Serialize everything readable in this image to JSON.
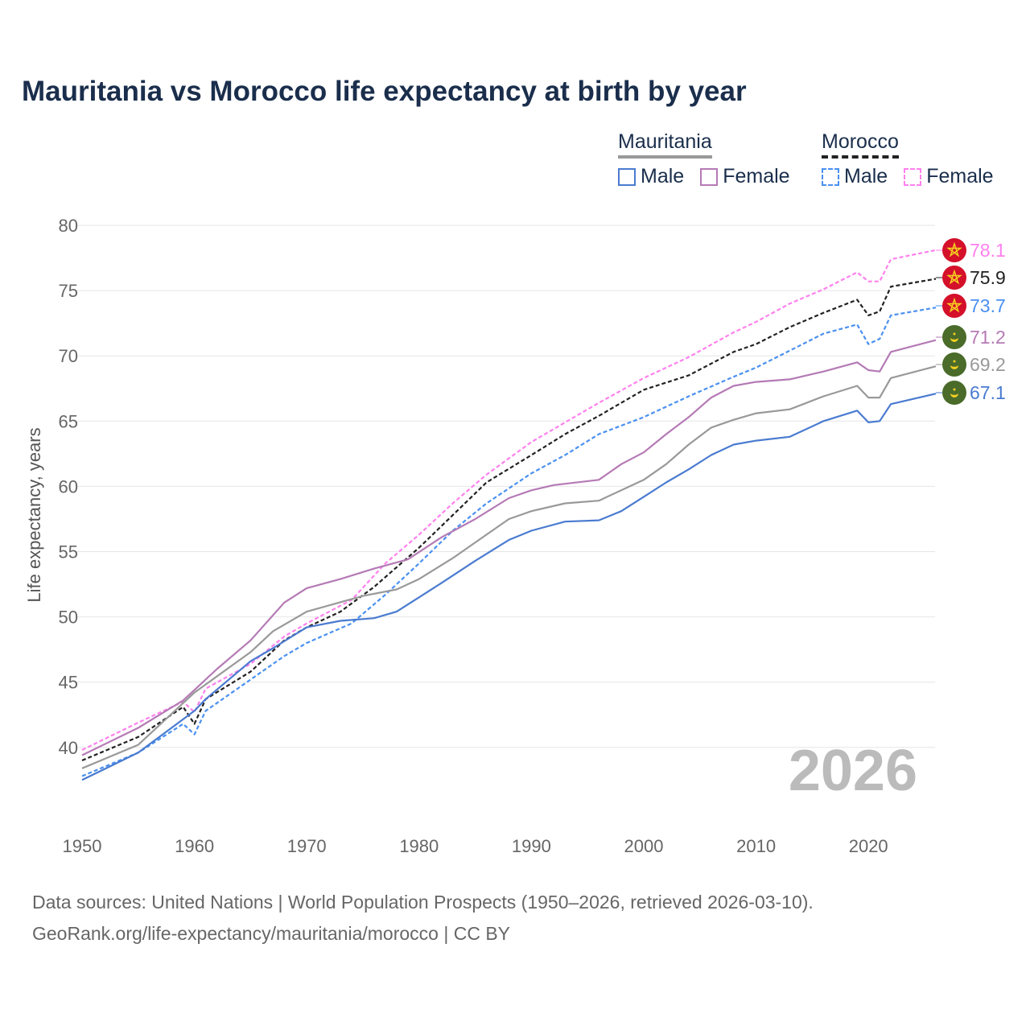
{
  "chart_data": {
    "type": "line",
    "title": "Mauritania vs Morocco life expectancy at birth by year",
    "xlabel": "",
    "ylabel": "Life expectancy, years",
    "xlim": [
      1950,
      2026
    ],
    "ylim": [
      35,
      80
    ],
    "xticks": [
      "1950",
      "1960",
      "1970",
      "1980",
      "1990",
      "2000",
      "2010",
      "2020"
    ],
    "yticks": [
      "40",
      "45",
      "50",
      "55",
      "60",
      "65",
      "70",
      "75",
      "80"
    ],
    "grid": true,
    "watermark_year": "2026",
    "legend": {
      "groups": [
        {
          "country": "Mauritania",
          "male": "Male",
          "female": "Female"
        },
        {
          "country": "Morocco",
          "male": "Male",
          "female": "Female"
        }
      ],
      "placement": "top-right"
    },
    "series": [
      {
        "name": "Morocco Female",
        "color": "#ff80ee",
        "dash": true,
        "flag": "morocco",
        "end_label": "78.1",
        "x": [
          1950,
          1955,
          1959,
          1960,
          1961,
          1965,
          1968,
          1970,
          1974,
          1977,
          1980,
          1983,
          1986,
          1990,
          1993,
          1996,
          2000,
          2004,
          2008,
          2010,
          2013,
          2016,
          2019,
          2020,
          2021,
          2022,
          2026
        ],
        "y": [
          39.8,
          41.9,
          43.5,
          42.7,
          44.5,
          46.4,
          48.5,
          49.5,
          51.3,
          54.1,
          56.3,
          58.7,
          60.9,
          63.4,
          64.9,
          66.4,
          68.3,
          69.9,
          71.8,
          72.6,
          74.0,
          75.1,
          76.4,
          75.7,
          75.7,
          77.4,
          78.1
        ]
      },
      {
        "name": "Morocco",
        "color": "#222222",
        "dash": true,
        "flag": "morocco",
        "end_label": "75.9",
        "x": [
          1950,
          1955,
          1959,
          1960,
          1961,
          1965,
          1968,
          1970,
          1973,
          1976,
          1980,
          1983,
          1986,
          1990,
          1993,
          1996,
          2000,
          2004,
          2008,
          2010,
          2013,
          2016,
          2019,
          2020,
          2021,
          2022,
          2026
        ],
        "y": [
          39.0,
          40.8,
          43.1,
          41.8,
          43.7,
          45.8,
          48.2,
          49.2,
          50.4,
          52.3,
          55.3,
          57.8,
          60.3,
          62.4,
          64.0,
          65.4,
          67.4,
          68.5,
          70.3,
          70.9,
          72.2,
          73.3,
          74.3,
          73.1,
          73.4,
          75.3,
          75.9
        ]
      },
      {
        "name": "Morocco Male",
        "color": "#4a90f0",
        "dash": true,
        "flag": "morocco",
        "end_label": "73.7",
        "x": [
          1950,
          1955,
          1959,
          1960,
          1961,
          1965,
          1968,
          1970,
          1974,
          1977,
          1980,
          1983,
          1986,
          1990,
          1993,
          1996,
          2000,
          2004,
          2008,
          2010,
          2013,
          2016,
          2019,
          2020,
          2021,
          2022,
          2026
        ],
        "y": [
          37.8,
          39.6,
          41.8,
          41.0,
          42.8,
          45.2,
          47.0,
          48.0,
          49.5,
          51.7,
          54.1,
          56.6,
          58.7,
          61.0,
          62.4,
          64.0,
          65.3,
          66.9,
          68.4,
          69.1,
          70.4,
          71.7,
          72.4,
          70.9,
          71.3,
          73.1,
          73.7
        ]
      },
      {
        "name": "Mauritania Female",
        "color": "#b57ab5",
        "dash": false,
        "flag": "mauritania",
        "end_label": "71.2",
        "x": [
          1950,
          1955,
          1959,
          1962,
          1965,
          1968,
          1970,
          1973,
          1976,
          1979,
          1982,
          1985,
          1988,
          1990,
          1992,
          1996,
          1998,
          2000,
          2002,
          2004,
          2006,
          2008,
          2010,
          2013,
          2016,
          2019,
          2020,
          2021,
          2022,
          2026
        ],
        "y": [
          39.4,
          41.5,
          43.6,
          46.0,
          48.2,
          51.1,
          52.2,
          52.9,
          53.7,
          54.4,
          56.1,
          57.5,
          59.1,
          59.7,
          60.1,
          60.5,
          61.7,
          62.6,
          64.0,
          65.3,
          66.8,
          67.7,
          68.0,
          68.2,
          68.8,
          69.5,
          68.9,
          68.8,
          70.3,
          71.2
        ]
      },
      {
        "name": "Mauritania",
        "color": "#999999",
        "dash": false,
        "flag": "mauritania",
        "end_label": "69.2",
        "x": [
          1950,
          1955,
          1960,
          1965,
          1967,
          1970,
          1975,
          1978,
          1980,
          1983,
          1986,
          1988,
          1990,
          1993,
          1996,
          2000,
          2002,
          2004,
          2006,
          2008,
          2010,
          2013,
          2016,
          2019,
          2020,
          2021,
          2022,
          2026
        ],
        "y": [
          38.4,
          40.2,
          44.2,
          47.3,
          48.9,
          50.4,
          51.6,
          52.1,
          52.9,
          54.5,
          56.3,
          57.5,
          58.1,
          58.7,
          58.9,
          60.5,
          61.7,
          63.2,
          64.5,
          65.1,
          65.6,
          65.9,
          66.9,
          67.7,
          66.8,
          66.8,
          68.3,
          69.2
        ]
      },
      {
        "name": "Mauritania Male",
        "color": "#4a7bd0",
        "dash": false,
        "flag": "mauritania",
        "end_label": "67.1",
        "x": [
          1950,
          1955,
          1960,
          1961,
          1965,
          1967,
          1970,
          1973,
          1976,
          1978,
          1980,
          1982,
          1985,
          1988,
          1990,
          1993,
          1996,
          1998,
          2000,
          2002,
          2004,
          2006,
          2008,
          2010,
          2013,
          2016,
          2019,
          2020,
          2021,
          2022,
          2026
        ],
        "y": [
          37.5,
          39.6,
          42.8,
          43.7,
          46.6,
          47.6,
          49.2,
          49.7,
          49.9,
          50.4,
          51.5,
          52.6,
          54.3,
          55.9,
          56.6,
          57.3,
          57.4,
          58.1,
          59.2,
          60.3,
          61.3,
          62.4,
          63.2,
          63.5,
          63.8,
          65.0,
          65.8,
          64.9,
          65.0,
          66.3,
          67.1
        ]
      }
    ]
  },
  "footer": {
    "line1": "Data sources: United Nations | World Population Prospects (1950–2026, retrieved 2026-03-10).",
    "line2": "GeoRank.org/life-expectancy/mauritania/morocco | CC BY"
  },
  "colors": {
    "title": "#1a2e4c",
    "morocco_flag": "#d4102a",
    "mauritania_flag": "#4a6b2a",
    "emblem": "#f5d020"
  }
}
